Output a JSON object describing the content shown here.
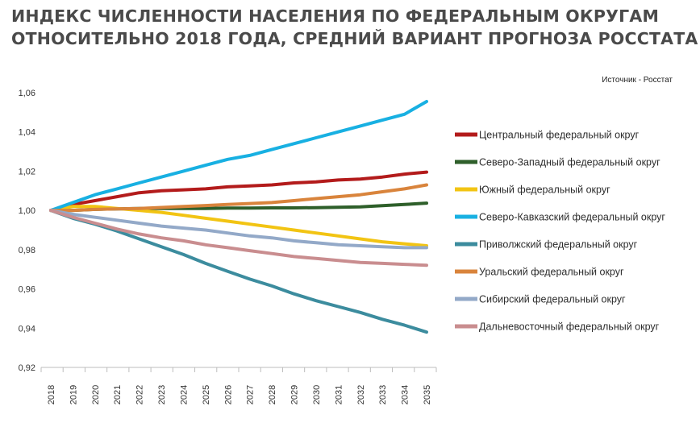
{
  "title_lines": [
    "ИНДЕКС ЧИСЛЕННОСТИ НАСЕЛЕНИЯ ПО ФЕДЕРАЛЬНЫМ ОКРУГАМ",
    "ОТНОСИТЕЛЬНО 2018 ГОДА, СРЕДНИЙ ВАРИАНТ ПРОГНОЗА РОССТАТА"
  ],
  "source": "Источник - Росстат",
  "chart_data": {
    "type": "line",
    "title": "ИНДЕКС ЧИСЛЕННОСТИ НАСЕЛЕНИЯ ПО ФЕДЕРАЛЬНЫМ ОКРУГАМ ОТНОСИТЕЛЬНО 2018 ГОДА, СРЕДНИЙ ВАРИАНТ ПРОГНОЗА РОССТАТА",
    "xlabel": "",
    "ylabel": "",
    "x": [
      "2018",
      "2019",
      "2020",
      "2021",
      "2022",
      "2023",
      "2024",
      "2025",
      "2026",
      "2027",
      "2028",
      "2029",
      "2030",
      "2031",
      "2032",
      "2033",
      "2034",
      "2035"
    ],
    "ylim": [
      0.92,
      1.06
    ],
    "yticks": [
      0.92,
      0.94,
      0.96,
      0.98,
      1.0,
      1.02,
      1.04,
      1.06
    ],
    "ytick_labels": [
      "0,92",
      "0,94",
      "0,96",
      "0,98",
      "1,00",
      "1,02",
      "1,04",
      "1,06"
    ],
    "grid": false,
    "legend_position": "right",
    "series": [
      {
        "name": "Центральный федеральный округ",
        "color": "#b31b1b",
        "values": [
          1.0,
          1.003,
          1.005,
          1.007,
          1.009,
          1.01,
          1.0105,
          1.011,
          1.012,
          1.0125,
          1.013,
          1.014,
          1.0145,
          1.0155,
          1.016,
          1.017,
          1.0185,
          1.0195
        ]
      },
      {
        "name": "Северо-Западный федеральный округ",
        "color": "#2e5f2a",
        "values": [
          1.0,
          1.0,
          1.0005,
          1.0008,
          1.001,
          1.001,
          1.001,
          1.001,
          1.0012,
          1.0012,
          1.0013,
          1.0013,
          1.0014,
          1.0016,
          1.0018,
          1.0024,
          1.003,
          1.0037
        ]
      },
      {
        "name": "Южный федеральный округ",
        "color": "#f2c413",
        "values": [
          1.0,
          1.002,
          1.002,
          1.001,
          1.0,
          0.999,
          0.9975,
          0.996,
          0.9945,
          0.993,
          0.9915,
          0.99,
          0.9885,
          0.987,
          0.9855,
          0.984,
          0.983,
          0.982
        ]
      },
      {
        "name": "Северо-Кавказский федеральный округ",
        "color": "#18b0e2",
        "values": [
          1.0,
          1.004,
          1.008,
          1.011,
          1.014,
          1.017,
          1.02,
          1.023,
          1.026,
          1.028,
          1.031,
          1.034,
          1.037,
          1.04,
          1.043,
          1.046,
          1.049,
          1.0555
        ]
      },
      {
        "name": "Приволжский федеральный округ",
        "color": "#3c8c9e",
        "values": [
          1.0,
          0.996,
          0.993,
          0.9895,
          0.9855,
          0.9815,
          0.9775,
          0.973,
          0.969,
          0.965,
          0.9615,
          0.9575,
          0.954,
          0.951,
          0.948,
          0.9445,
          0.9415,
          0.938
        ]
      },
      {
        "name": "Уральский федеральный округ",
        "color": "#d9843c",
        "values": [
          1.0,
          1.0,
          1.0005,
          1.0008,
          1.001,
          1.0015,
          1.002,
          1.0025,
          1.003,
          1.0035,
          1.004,
          1.005,
          1.006,
          1.007,
          1.008,
          1.0095,
          1.011,
          1.013
        ]
      },
      {
        "name": "Сибирский федеральный округ",
        "color": "#93a9c8",
        "values": [
          1.0,
          0.998,
          0.9965,
          0.995,
          0.9935,
          0.992,
          0.991,
          0.99,
          0.9885,
          0.987,
          0.986,
          0.9845,
          0.9835,
          0.9825,
          0.982,
          0.9815,
          0.981,
          0.981
        ]
      },
      {
        "name": "Дальневосточный федеральный округ",
        "color": "#c98d8f",
        "values": [
          1.0,
          0.9965,
          0.9935,
          0.9905,
          0.988,
          0.986,
          0.9845,
          0.9825,
          0.981,
          0.9795,
          0.978,
          0.9765,
          0.9755,
          0.9745,
          0.9735,
          0.973,
          0.9725,
          0.972
        ]
      }
    ]
  }
}
